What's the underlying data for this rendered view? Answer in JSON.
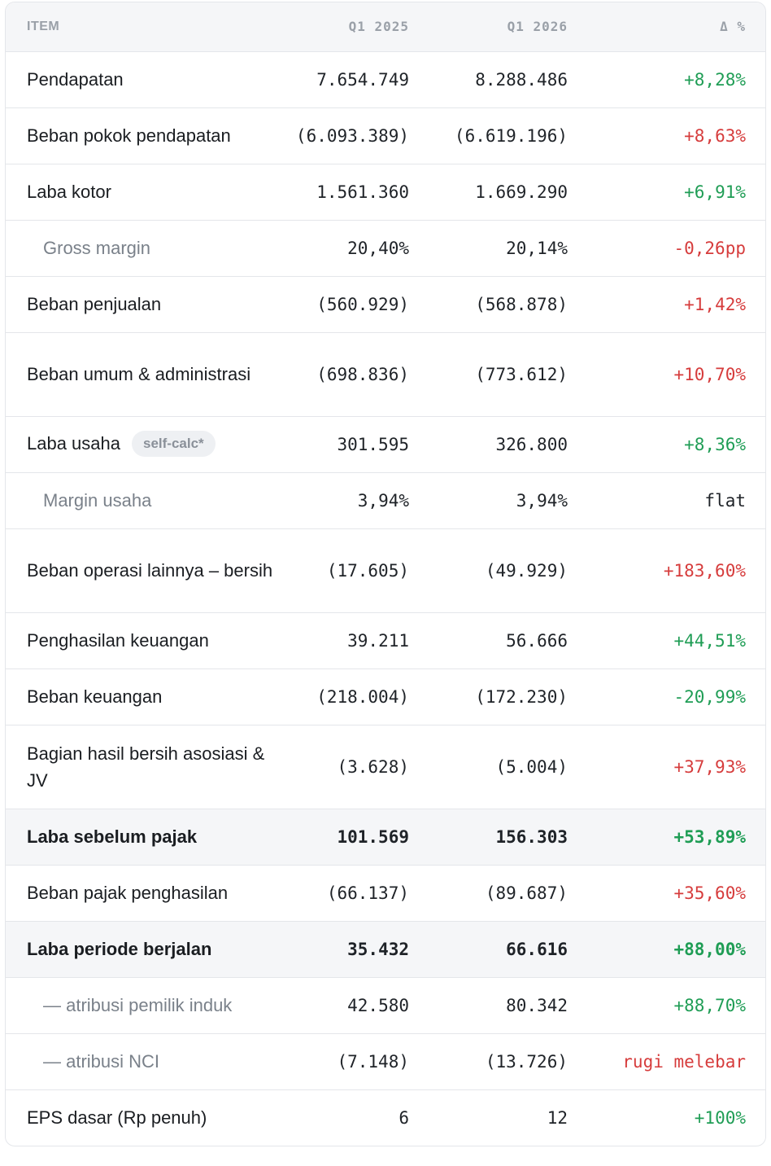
{
  "header": {
    "item": "ITEM",
    "q1": "Q1 2025",
    "q2": "Q1 2026",
    "delta": "Δ %"
  },
  "badge": "self-calc*",
  "rows": [
    {
      "label": "Pendapatan",
      "q1": "7.654.749",
      "q2": "8.288.486",
      "delta": "+8,28%",
      "tone": "positive"
    },
    {
      "label": "Beban pokok pendapatan",
      "q1": "(6.093.389)",
      "q2": "(6.619.196)",
      "delta": "+8,63%",
      "tone": "negative"
    },
    {
      "label": "Laba kotor",
      "q1": "1.561.360",
      "q2": "1.669.290",
      "delta": "+6,91%",
      "tone": "positive"
    },
    {
      "label": "Gross margin",
      "q1": "20,40%",
      "q2": "20,14%",
      "delta": "-0,26pp",
      "tone": "negative"
    },
    {
      "label": "Beban penjualan",
      "q1": "(560.929)",
      "q2": "(568.878)",
      "delta": "+1,42%",
      "tone": "negative"
    },
    {
      "label": "Beban umum & administrasi",
      "q1": "(698.836)",
      "q2": "(773.612)",
      "delta": "+10,70%",
      "tone": "negative"
    },
    {
      "label": "Laba usaha",
      "q1": "301.595",
      "q2": "326.800",
      "delta": "+8,36%",
      "tone": "positive"
    },
    {
      "label": "Margin usaha",
      "q1": "3,94%",
      "q2": "3,94%",
      "delta": "flat",
      "tone": "neutral"
    },
    {
      "label": "Beban operasi lainnya – bersih",
      "q1": "(17.605)",
      "q2": "(49.929)",
      "delta": "+183,60%",
      "tone": "negative"
    },
    {
      "label": "Penghasilan keuangan",
      "q1": "39.211",
      "q2": "56.666",
      "delta": "+44,51%",
      "tone": "positive"
    },
    {
      "label": "Beban keuangan",
      "q1": "(218.004)",
      "q2": "(172.230)",
      "delta": "-20,99%",
      "tone": "positive"
    },
    {
      "label": "Bagian hasil bersih asosiasi & JV",
      "q1": "(3.628)",
      "q2": "(5.004)",
      "delta": "+37,93%",
      "tone": "negative"
    },
    {
      "label": "Laba sebelum pajak",
      "q1": "101.569",
      "q2": "156.303",
      "delta": "+53,89%",
      "tone": "positive"
    },
    {
      "label": "Beban pajak penghasilan",
      "q1": "(66.137)",
      "q2": "(89.687)",
      "delta": "+35,60%",
      "tone": "negative"
    },
    {
      "label": "Laba periode berjalan",
      "q1": "35.432",
      "q2": "66.616",
      "delta": "+88,00%",
      "tone": "positive"
    },
    {
      "label": "— atribusi pemilik induk",
      "q1": "42.580",
      "q2": "80.342",
      "delta": "+88,70%",
      "tone": "positive"
    },
    {
      "label": "— atribusi NCI",
      "q1": "(7.148)",
      "q2": "(13.726)",
      "delta": "rugi melebar",
      "tone": "negative"
    },
    {
      "label": "EPS dasar (Rp penuh)",
      "q1": "6",
      "q2": "12",
      "delta": "+100%",
      "tone": "positive"
    }
  ],
  "colors": {
    "positive": "#1f9d55",
    "negative": "#d63c3c",
    "neutral": "#1f2328",
    "header_bg": "#f5f6f8",
    "border": "#e4e6ea"
  }
}
